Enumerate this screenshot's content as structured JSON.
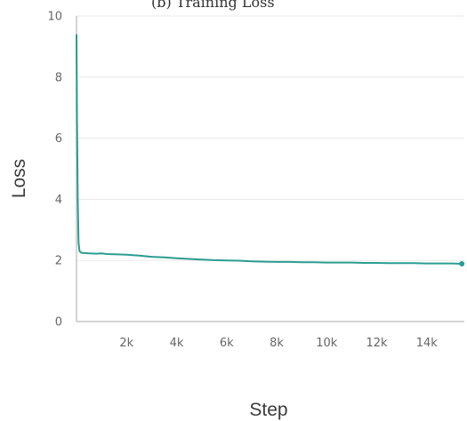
{
  "chart_data": {
    "type": "line",
    "title": "",
    "xlabel": "Step",
    "ylabel": "Loss",
    "xlim": [
      0,
      15500
    ],
    "ylim": [
      0,
      10
    ],
    "xticks": [
      2000,
      4000,
      6000,
      8000,
      10000,
      12000,
      14000
    ],
    "xtick_labels": [
      "2k",
      "4k",
      "6k",
      "8k",
      "10k",
      "12k",
      "14k"
    ],
    "yticks": [
      0,
      2,
      4,
      6,
      8,
      10
    ],
    "ytick_labels": [
      "0",
      "2",
      "4",
      "6",
      "8",
      "10"
    ],
    "grid": true,
    "legend": "none",
    "series": [
      {
        "color": "#2a9d8f",
        "x": [
          0,
          20,
          50,
          80,
          120,
          200,
          300,
          500,
          800,
          1000,
          1200,
          1500,
          2000,
          2500,
          3000,
          3500,
          4000,
          4500,
          5000,
          5500,
          6000,
          6500,
          7000,
          7500,
          8000,
          8500,
          9000,
          9500,
          10000,
          10500,
          11000,
          11500,
          12000,
          12500,
          13000,
          13500,
          14000,
          14500,
          15000,
          15400
        ],
        "y": [
          9.4,
          6.5,
          4.0,
          2.6,
          2.3,
          2.25,
          2.24,
          2.23,
          2.22,
          2.23,
          2.21,
          2.2,
          2.19,
          2.16,
          2.12,
          2.1,
          2.07,
          2.05,
          2.03,
          2.01,
          2.0,
          1.99,
          1.97,
          1.96,
          1.95,
          1.95,
          1.94,
          1.94,
          1.93,
          1.93,
          1.93,
          1.92,
          1.92,
          1.91,
          1.91,
          1.91,
          1.9,
          1.9,
          1.9,
          1.89
        ]
      }
    ]
  }
}
